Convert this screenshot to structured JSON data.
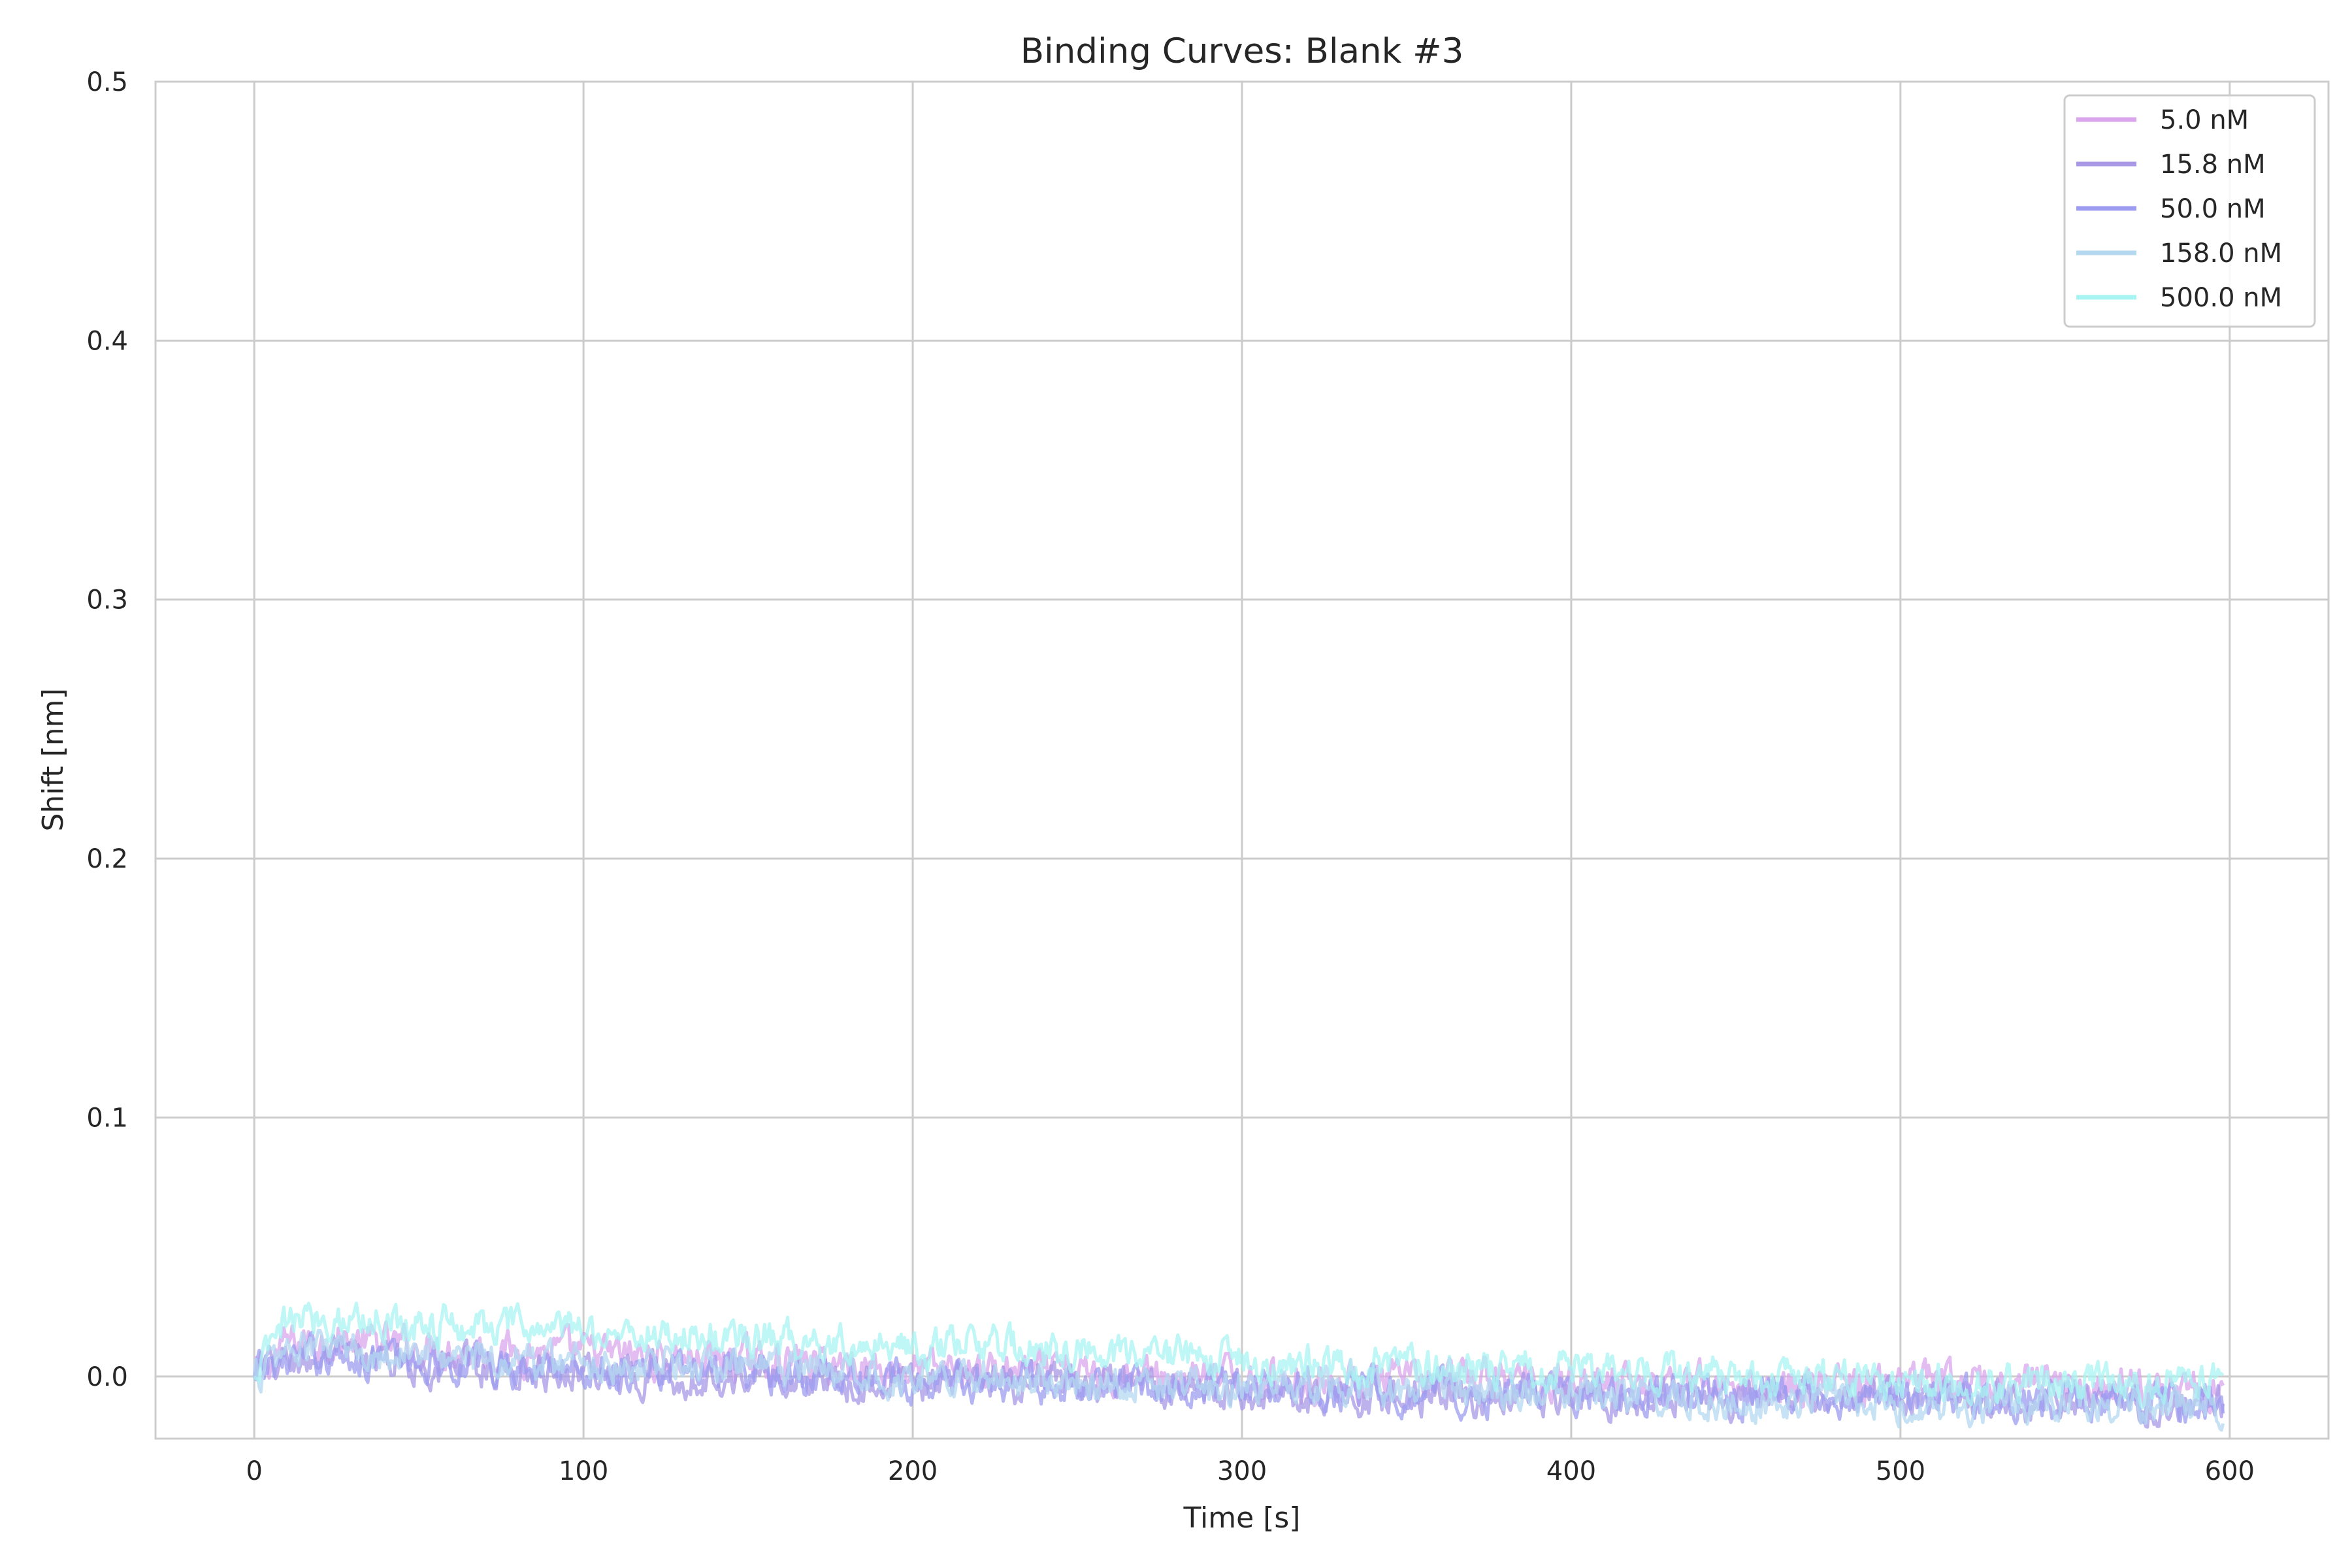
{
  "chart_data": {
    "type": "line",
    "title": "Binding Curves: Blank #3",
    "xlabel": "Time [s]",
    "ylabel": "Shift [nm]",
    "xlim": [
      -30,
      630
    ],
    "ylim": [
      -0.024,
      0.5
    ],
    "xticks": [
      0,
      100,
      200,
      300,
      400,
      500,
      600
    ],
    "yticks": [
      0.0,
      0.1,
      0.2,
      0.3,
      0.4,
      0.5
    ],
    "xtick_labels": [
      "0",
      "100",
      "200",
      "300",
      "400",
      "500",
      "600"
    ],
    "ytick_labels": [
      "0.0",
      "0.1",
      "0.2",
      "0.3",
      "0.4",
      "0.5"
    ],
    "grid": true,
    "legend_position": "top-right",
    "series": [
      {
        "name": "5.0 nM",
        "color": "#d9a6ec",
        "x": [
          0,
          10,
          25,
          50,
          75,
          100,
          125,
          150,
          175,
          200,
          225,
          250,
          275,
          300,
          325,
          350,
          375,
          400,
          425,
          450,
          475,
          500,
          525,
          550,
          575,
          598
        ],
        "y": [
          0.0,
          0.013,
          0.014,
          0.011,
          0.01,
          0.009,
          0.007,
          0.006,
          0.005,
          0.003,
          0.002,
          0.001,
          0.0,
          -0.001,
          -0.002,
          -0.002,
          -0.001,
          -0.002,
          -0.002,
          -0.003,
          -0.003,
          -0.003,
          -0.003,
          -0.003,
          -0.004,
          -0.004
        ]
      },
      {
        "name": "15.8 nM",
        "color": "#a898e6",
        "x": [
          0,
          10,
          25,
          50,
          75,
          100,
          125,
          150,
          175,
          200,
          225,
          250,
          275,
          300,
          325,
          350,
          375,
          400,
          425,
          450,
          475,
          500,
          525,
          550,
          575,
          598
        ],
        "y": [
          0.0,
          0.006,
          0.007,
          0.005,
          0.003,
          0.002,
          0.001,
          0.0,
          -0.001,
          -0.002,
          -0.003,
          -0.004,
          -0.005,
          -0.006,
          -0.007,
          -0.007,
          -0.008,
          -0.008,
          -0.008,
          -0.009,
          -0.009,
          -0.009,
          -0.01,
          -0.01,
          -0.01,
          -0.011
        ]
      },
      {
        "name": "50.0 nM",
        "color": "#9c9cf0",
        "x": [
          0,
          10,
          25,
          50,
          75,
          100,
          125,
          150,
          175,
          200,
          225,
          250,
          275,
          300,
          325,
          350,
          375,
          400,
          425,
          450,
          475,
          500,
          525,
          550,
          575,
          598
        ],
        "y": [
          0.0,
          0.007,
          0.008,
          0.006,
          0.004,
          0.003,
          0.002,
          0.001,
          0.0,
          -0.001,
          -0.002,
          -0.003,
          -0.004,
          -0.005,
          -0.006,
          -0.006,
          -0.007,
          -0.007,
          -0.007,
          -0.008,
          -0.008,
          -0.008,
          -0.009,
          -0.009,
          -0.009,
          -0.01
        ]
      },
      {
        "name": "158.0 nM",
        "color": "#b4d8f0",
        "x": [
          0,
          10,
          25,
          50,
          75,
          100,
          125,
          150,
          175,
          200,
          225,
          250,
          275,
          300,
          325,
          350,
          375,
          400,
          425,
          450,
          475,
          500,
          525,
          550,
          575,
          598
        ],
        "y": [
          0.0,
          0.01,
          0.011,
          0.009,
          0.007,
          0.006,
          0.005,
          0.003,
          0.002,
          0.001,
          0.0,
          -0.001,
          -0.002,
          -0.004,
          -0.005,
          -0.006,
          -0.006,
          -0.007,
          -0.008,
          -0.009,
          -0.009,
          -0.01,
          -0.01,
          -0.01,
          -0.011,
          -0.011
        ]
      },
      {
        "name": "500.0 nM",
        "color": "#a8f4f2",
        "x": [
          0,
          10,
          25,
          50,
          75,
          100,
          125,
          150,
          175,
          200,
          225,
          250,
          275,
          300,
          325,
          350,
          375,
          400,
          425,
          450,
          475,
          500,
          525,
          550,
          575,
          598
        ],
        "y": [
          0.0,
          0.021,
          0.023,
          0.021,
          0.019,
          0.018,
          0.016,
          0.015,
          0.014,
          0.012,
          0.011,
          0.01,
          0.008,
          0.006,
          0.005,
          0.004,
          0.003,
          0.002,
          0.001,
          0.0,
          -0.001,
          -0.001,
          -0.002,
          -0.002,
          -0.002,
          -0.002
        ]
      }
    ]
  }
}
